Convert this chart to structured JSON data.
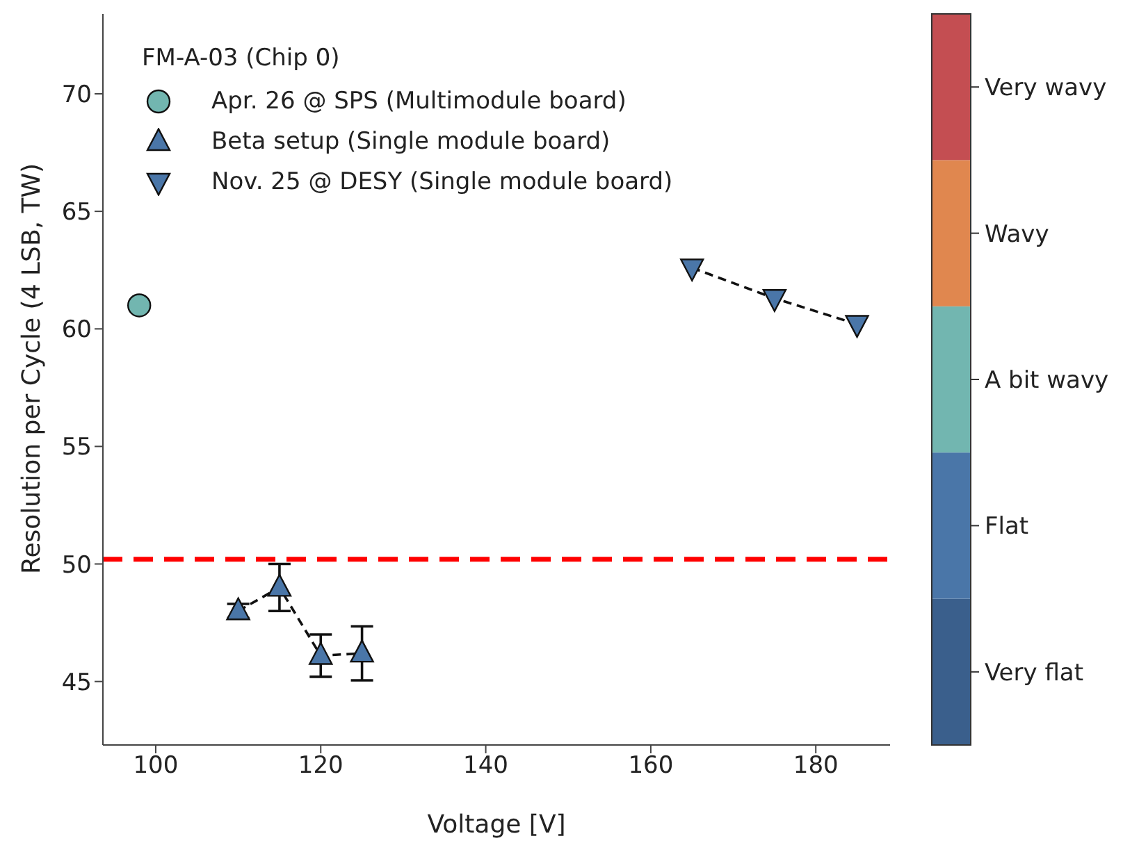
{
  "chart_data": {
    "type": "scatter",
    "xlabel": "Voltage [V]",
    "ylabel": "Resolution per Cycle (4 LSB, TW)",
    "legend_title": "FM-A-03 (Chip 0)",
    "legend": "top left",
    "grid": false,
    "xlim": [
      93.6,
      189
    ],
    "xticks": [
      100,
      120,
      140,
      160,
      180
    ],
    "ylim": [
      42.3,
      73.4
    ],
    "yticks": [
      45,
      50,
      55,
      60,
      65,
      70
    ],
    "clim": [
      0,
      5
    ],
    "cticks": [
      {
        "value": 0.5,
        "label": "Very flat"
      },
      {
        "value": 1.5,
        "label": "Flat"
      },
      {
        "value": 2.5,
        "label": "A bit wavy"
      },
      {
        "value": 3.5,
        "label": "Wavy"
      },
      {
        "value": 4.5,
        "label": "Very wavy"
      }
    ],
    "colors": [
      "#3a5f8c",
      "#4a76a8",
      "#72b6b0",
      "#e0874f",
      "#c44e52"
    ],
    "ref_lines": [
      {
        "axis": "y",
        "value": 50.2,
        "color": "#ff0000",
        "line_style": "dashed"
      }
    ],
    "series": [
      {
        "name": "Apr. 26 @ SPS (Multimodule board)",
        "type": "scatter",
        "marker": "circle",
        "x": [
          98
        ],
        "values": [
          61.0
        ],
        "color": "#72b6b0"
      },
      {
        "name": "Beta setup (Single module board)",
        "type": "line",
        "line_style": "dashed",
        "marker": "triangle",
        "x": [
          110,
          115,
          120,
          125
        ],
        "values": [
          48.0,
          49.0,
          46.1,
          46.2
        ],
        "errors": [
          0.3,
          1.0,
          0.9,
          1.15
        ],
        "color": "#4a76a8"
      },
      {
        "name": "Nov. 25 @ DESY (Single module board)",
        "type": "line",
        "line_style": "dashed",
        "marker": "triangle-down",
        "x": [
          165,
          175,
          185
        ],
        "values": [
          62.6,
          61.3,
          60.2
        ],
        "color": "#4a76a8"
      }
    ]
  }
}
